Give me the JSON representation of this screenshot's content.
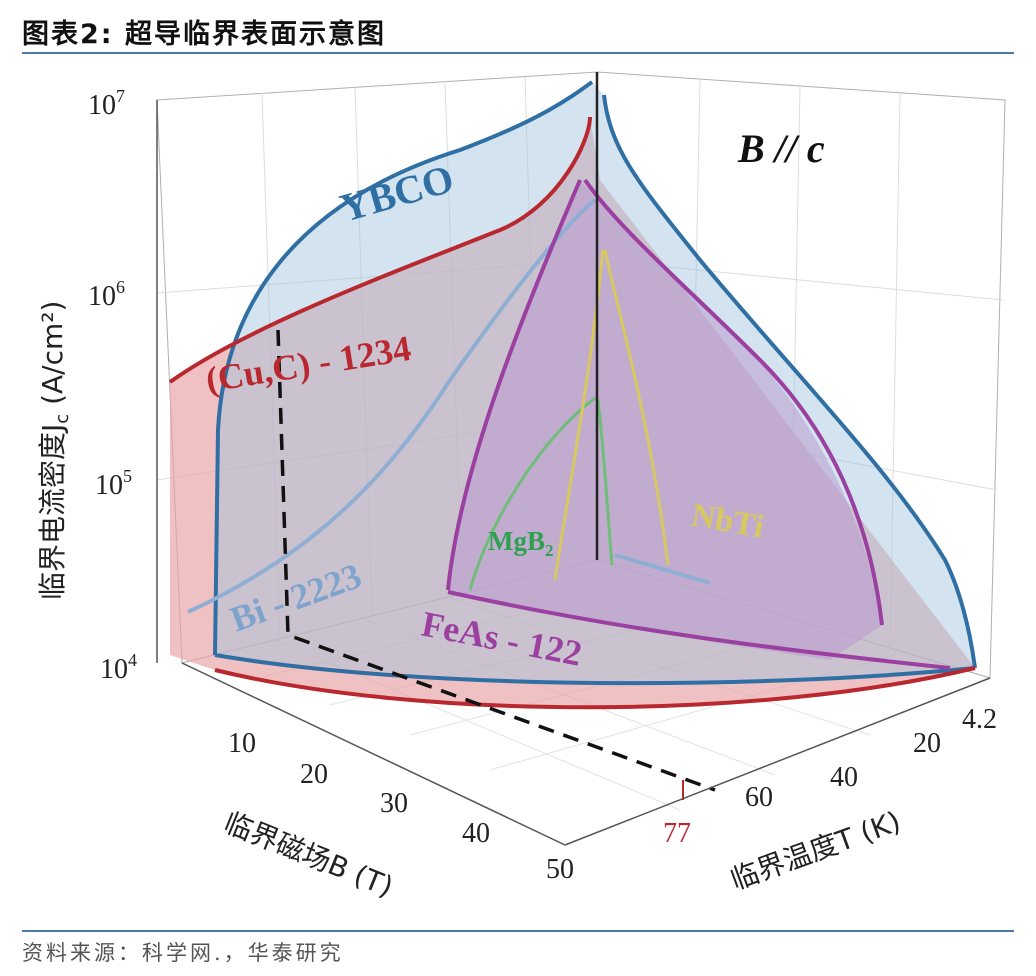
{
  "header": {
    "title": "图表2:  超导临界表面示意图",
    "source": "资料来源：科学网.，华泰研究"
  },
  "chart_data": {
    "type": "surface-3d",
    "annotation": "B // c",
    "axes": {
      "z_label": "临界电流密度J",
      "z_label_subscript": "c",
      "z_label_unit": " (A/cm²)",
      "z_ticks": [
        "10",
        "10",
        "10",
        "10"
      ],
      "z_tick_exponents": [
        "7",
        "6",
        "5",
        "4"
      ],
      "z_scale": "log",
      "z_range": [
        10000,
        10000000
      ],
      "b_label": "临界磁场B (T)",
      "b_ticks": [
        "10",
        "20",
        "30",
        "40",
        "50"
      ],
      "b_range": [
        0,
        50
      ],
      "t_label": "临界温度T (K)",
      "t_ticks": [
        "4.2",
        "20",
        "40",
        "60"
      ],
      "t_range": [
        4.2,
        90
      ],
      "t_marker": "77"
    },
    "series": [
      {
        "name": "YBCO",
        "color": "#2f6fa3"
      },
      {
        "name": "(Cu,C) - 1234",
        "color": "#b8282e"
      },
      {
        "name": "Bi - 2223",
        "color": "#8eaed3"
      },
      {
        "name": "FeAs - 122",
        "color": "#9b3fa0"
      },
      {
        "name": "MgB",
        "subscript": "2",
        "color": "#3fae5a"
      },
      {
        "name": "NbTi",
        "color": "#d8c860"
      }
    ],
    "reference_line_T": 77,
    "grid": true
  }
}
